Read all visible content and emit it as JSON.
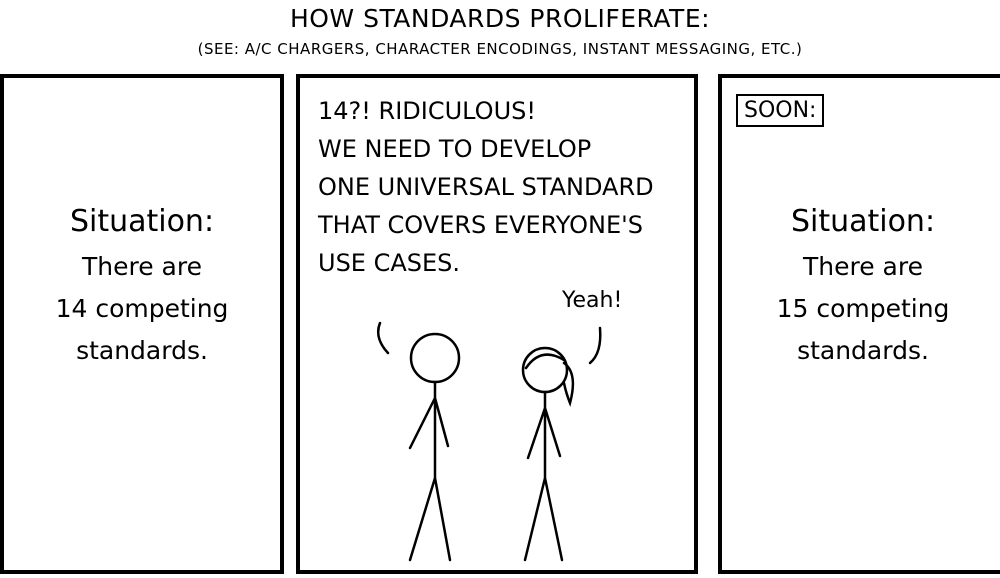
{
  "title": "How standards proliferate:",
  "subtitle": "(See: A/C chargers, character encodings, instant messaging, etc.)",
  "panel1": {
    "heading": "Situation:",
    "line1": "There are",
    "line2": "14 competing",
    "line3": "standards."
  },
  "panel2": {
    "speech": "14?! Ridiculous!\nWe need to develop\none universal standard\nthat covers everyone's\nuse cases.",
    "reply": "Yeah!"
  },
  "panel3": {
    "caption": "Soon:",
    "heading": "Situation:",
    "line1": "There are",
    "line2": "15 competing",
    "line3": "standards."
  }
}
